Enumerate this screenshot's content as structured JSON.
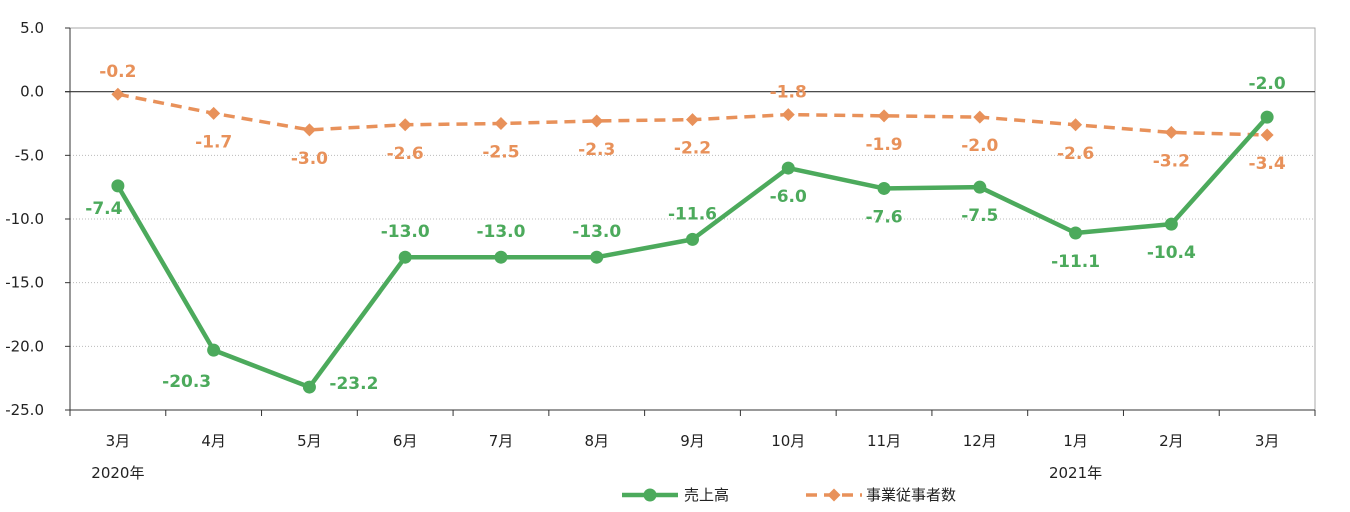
{
  "chart_data": {
    "type": "line",
    "categories": [
      "3月",
      "4月",
      "5月",
      "6月",
      "7月",
      "8月",
      "9月",
      "10月",
      "11月",
      "12月",
      "1月",
      "2月",
      "3月"
    ],
    "year_labels": [
      {
        "category_index": 0,
        "text": "2020年"
      },
      {
        "category_index": 10,
        "text": "2021年"
      }
    ],
    "ylim": [
      -25.0,
      5.0
    ],
    "yticks": [
      "5.0",
      "0.0",
      "-5.0",
      "-10.0",
      "-15.0",
      "-20.0",
      "-25.0"
    ],
    "ytick_values": [
      5,
      0,
      -5,
      -10,
      -15,
      -20,
      -25
    ],
    "grid": true,
    "legend_position": "bottom",
    "series": [
      {
        "name": "売上高",
        "color": "#4caa5c",
        "marker": "circle",
        "line_style": "solid",
        "values": [
          -7.4,
          -20.3,
          -23.2,
          -13.0,
          -13.0,
          -13.0,
          -11.6,
          -6.0,
          -7.6,
          -7.5,
          -11.1,
          -10.4,
          -2.0
        ],
        "labels": [
          "-7.4",
          "-20.3",
          "-23.2",
          "-13.0",
          "-13.0",
          "-13.0",
          "-11.6",
          "-6.0",
          "-7.6",
          "-7.5",
          "-11.1",
          "-10.4",
          "-2.0"
        ]
      },
      {
        "name": "事業従事者数",
        "color": "#e8915a",
        "marker": "diamond",
        "line_style": "dashed",
        "values": [
          -0.2,
          -1.7,
          -3.0,
          -2.6,
          -2.5,
          -2.3,
          -2.2,
          -1.8,
          -1.9,
          -2.0,
          -2.6,
          -3.2,
          -3.4
        ],
        "labels": [
          "-0.2",
          "-1.7",
          "-3.0",
          "-2.6",
          "-2.5",
          "-2.3",
          "-2.2",
          "-1.8",
          "-1.9",
          "-2.0",
          "-2.6",
          "-3.2",
          "-3.4"
        ]
      }
    ]
  }
}
